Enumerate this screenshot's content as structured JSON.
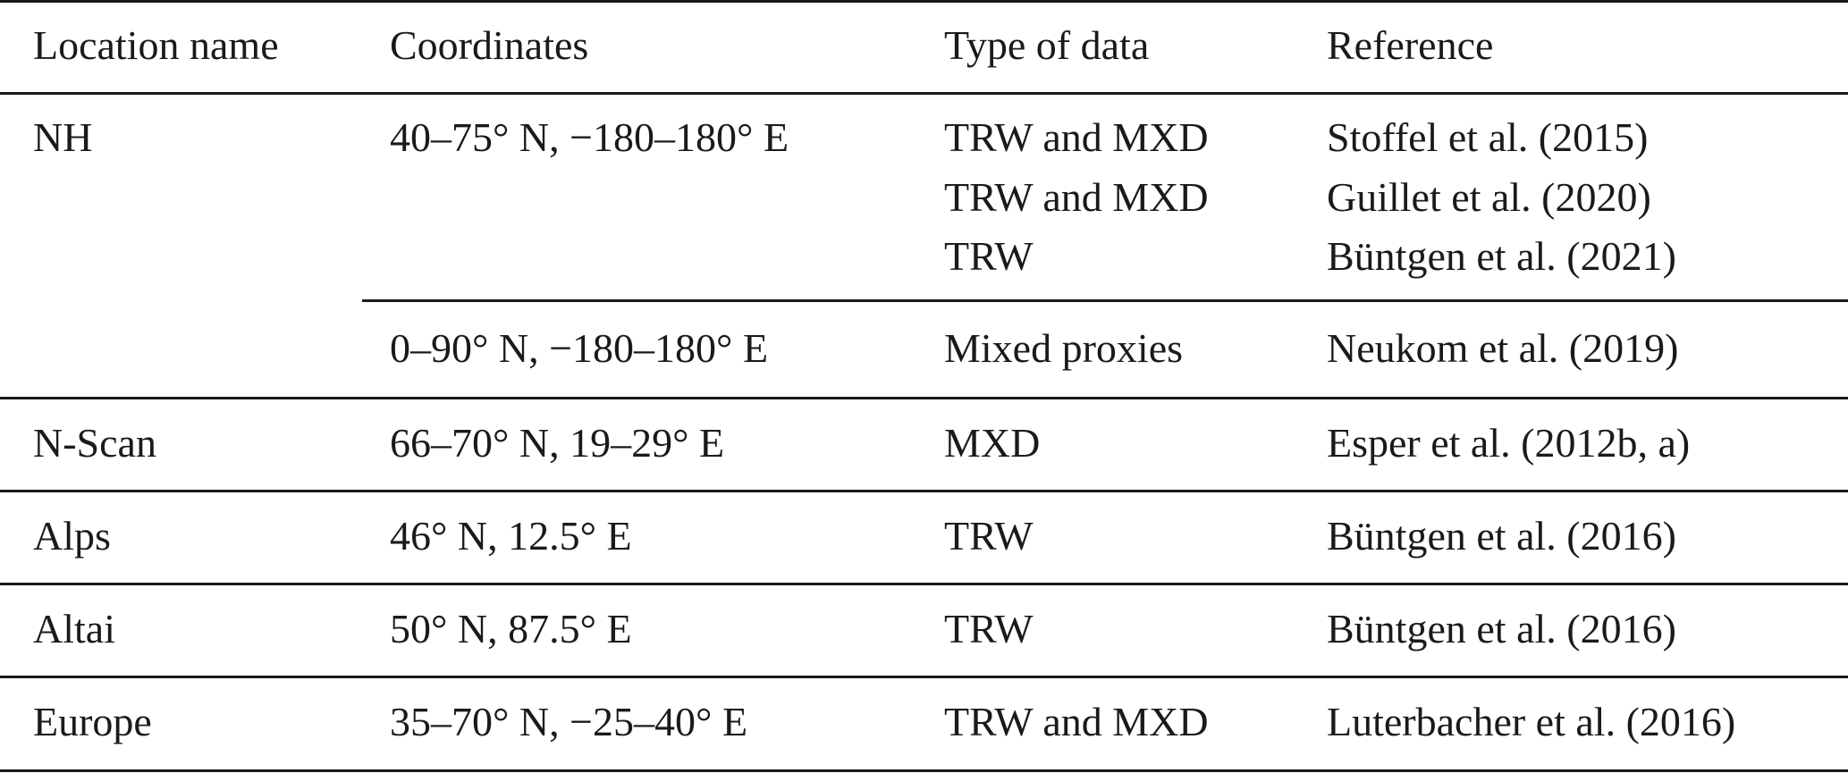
{
  "header": {
    "location": "Location name",
    "coordinates": "Coordinates",
    "type": "Type of data",
    "reference": "Reference"
  },
  "rows": [
    {
      "location": "NH",
      "groups": [
        {
          "coordinates": "40–75° N, −180–180° E",
          "entries": [
            {
              "type": "TRW and MXD",
              "reference": "Stoffel et al. (2015)"
            },
            {
              "type": "TRW and MXD",
              "reference": "Guillet et al. (2020)"
            },
            {
              "type": "TRW",
              "reference": "Büntgen et al. (2021)"
            }
          ]
        },
        {
          "coordinates": "0–90° N, −180–180° E",
          "entries": [
            {
              "type": "Mixed proxies",
              "reference": "Neukom et al. (2019)"
            }
          ]
        }
      ]
    },
    {
      "location": "N-Scan",
      "coordinates": "66–70° N, 19–29° E",
      "type": "MXD",
      "reference": "Esper et al. (2012b, a)"
    },
    {
      "location": "Alps",
      "coordinates": "46° N, 12.5° E",
      "type": "TRW",
      "reference": "Büntgen et al. (2016)"
    },
    {
      "location": "Altai",
      "coordinates": "50° N, 87.5° E",
      "type": "TRW",
      "reference": "Büntgen et al. (2016)"
    },
    {
      "location": "Europe",
      "coordinates": "35–70° N, −25–40° E",
      "type": "TRW and MXD",
      "reference": "Luterbacher et al. (2016)"
    }
  ]
}
